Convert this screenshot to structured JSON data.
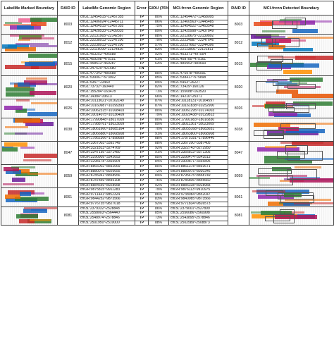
{
  "headers": {
    "left_image": "LabelMe Marked Boundary",
    "raid_left": "RAID ID",
    "genomic_region": "LabelMe Genomic Region",
    "error": "Error",
    "giou": "GIOU (76%)",
    "mci_region": "MCI-frcnn Genomic Region",
    "raid_right": "RAID ID",
    "right_image": "MCI-frcnn Detected Boundary"
  },
  "groups": [
    {
      "raid": "8003",
      "colors": [
        "#2e7d32",
        "#e64a19",
        "#8e24aa",
        "#1565c0",
        "#f06292"
      ],
      "rows": [
        {
          "region": "chr2L:12454515~12457355",
          "error": "TP",
          "giou": "80%",
          "mci": "chr2L:12454472~12458095"
        },
        {
          "region": "chr2L:12406024~12445711",
          "error": "TP",
          "giou": "86%",
          "mci": "chr2L:12400563~12445485"
        },
        {
          "region": "chr2L:12454515~12457355",
          "error": "TP",
          "giou": "75%",
          "mci": "chr2L:12454522~12463548"
        },
        {
          "region": "chr2L:12428533~12439335",
          "error": "TP",
          "giou": "89%",
          "mci": "chr2L:12425998~12437849"
        }
      ]
    },
    {
      "raid": "8012",
      "colors": [
        "#6a1b9a",
        "#ef6c00",
        "#0277bd",
        "#c2185b",
        "#558b2f"
      ],
      "rows": [
        {
          "region": "chr2L:22131905~22142567",
          "error": "TP",
          "giou": "88%",
          "mci": "chr2L:22128675~22139892"
        },
        {
          "region": "chr2L:22238913~22247200",
          "error": "TP",
          "giou": "79%",
          "mci": "chr2L:22234987~22247646"
        },
        {
          "region": "chr2L:22238913~22247200",
          "error": "TP",
          "giou": "57%",
          "mci": "chr2L:22237662~22244306"
        },
        {
          "region": "chr2L:22115099~22124826",
          "error": "TP",
          "giou": "83%",
          "mci": "chr2L:22113891~22121811"
        }
      ]
    },
    {
      "raid": "8015",
      "colors": [
        "#c62828",
        "#1565c0",
        "#2e7d32",
        "#8e24aa",
        "#ff8f00"
      ],
      "rows": [
        {
          "region": "chr2L:453253~496588",
          "error": "TP",
          "giou": "92%",
          "mci": "chr2L:453371~497554"
        },
        {
          "region": "chr2L:459208~475151",
          "error": "TP",
          "giou": "61%",
          "mci": "chr2L:458785~475161"
        },
        {
          "region": "chr2L:458513~469287",
          "error": "TP",
          "giou": "63%",
          "mci": "chr2L:480953~484693"
        },
        {
          "region": "chr2L:347529~421580",
          "error": "FN",
          "giou": "",
          "mci": ""
        },
        {
          "region": "chr2L:477343~485688",
          "error": "TP",
          "giou": "85%",
          "mci": "chr2L:476978~486591"
        }
      ]
    },
    {
      "raid": "8020",
      "colors": [
        "#e65100",
        "#2e7d32",
        "#1565c0",
        "#ad1457",
        "#6a1b9a"
      ],
      "rows": [
        {
          "region": "chr2L:539067~573902",
          "error": "TP",
          "giou": "85%",
          "mci": "chr2L:538417~575898"
        },
        {
          "region": "chr2L:5357~23469",
          "error": "TP",
          "giou": "84%",
          "mci": "chr2L:5463~26227"
        },
        {
          "region": "chr2L:73732~160449",
          "error": "TP",
          "giou": "82%",
          "mci": "chr2L:73429~160126"
        },
        {
          "region": "chr2L:155284~163478",
          "error": "TP",
          "giou": "71%",
          "mci": "chr2L:155088~163520"
        },
        {
          "region": "chr2L:14384~33613",
          "error": "TP",
          "giou": "66%",
          "mci": "chr2L:14216~25371"
        }
      ]
    },
    {
      "raid": "8026",
      "colors": [
        "#1565c0",
        "#c62828",
        "#2e7d32",
        "#8e24aa",
        "#ef6c00"
      ],
      "rows": [
        {
          "region": "chr2R:10113021~10162149",
          "error": "TP",
          "giou": "87%",
          "mci": "chr2R:10118131~10164597"
        },
        {
          "region": "chr2R:10160987~10299393",
          "error": "TP",
          "giou": "87%",
          "mci": "chr2R:10161838~10252900"
        },
        {
          "region": "chr2R:10062315~10168403",
          "error": "TP",
          "giou": "80%",
          "mci": "chr2R:10061295~10174003"
        },
        {
          "region": "chr2R:10014075~10136409",
          "error": "TP",
          "giou": "79%",
          "mci": "chr2R:10029438~10129813"
        }
      ]
    },
    {
      "raid": "8038",
      "colors": [
        "#ef6c00",
        "#6a1b9a",
        "#2e7d32",
        "#1565c0",
        "#c2185b"
      ],
      "rows": [
        {
          "region": "chr2R:17990848~18017009",
          "error": "TP",
          "giou": "80%",
          "mci": "chr2R:17991983~18016830"
        },
        {
          "region": "chr2R:17988761~18023009",
          "error": "TP",
          "giou": "89%",
          "mci": "chr2R:18011361~18023009"
        },
        {
          "region": "chr2R:18061660~18085164",
          "error": "TP",
          "giou": "70%",
          "mci": "chr2R:18055168~18083651"
        },
        {
          "region": "chr2R:18066880~18068908",
          "error": "TP",
          "giou": "91%",
          "mci": "chr2R:18063800~18068908"
        },
        {
          "region": "chr2R:17862366~17898689",
          "error": "TP",
          "giou": "88%",
          "mci": "chr2R:17875181~17896446"
        }
      ]
    },
    {
      "raid": "8047",
      "colors": [
        "#c62828",
        "#2e7d32",
        "#1565c0",
        "#8e24aa",
        "#ff8f00"
      ],
      "rows": [
        {
          "region": "chr2R:3367003~3392749",
          "error": "TP",
          "giou": "88%",
          "mci": "chr2R:3367200~3387405"
        },
        {
          "region": "chr2R:3321813~3274769",
          "error": "TP",
          "giou": "92%",
          "mci": "chr2R:3322743~3272950"
        },
        {
          "region": "chr2R:3347195~3371480",
          "error": "TP",
          "giou": "91%",
          "mci": "chr2R:3356813~3371305"
        },
        {
          "region": "chr2R:3290909~3342693",
          "error": "TP",
          "giou": "85%",
          "mci": "chr2R:3290474~3343513"
        },
        {
          "region": "chr2R:3298178~3365904",
          "error": "TP",
          "giou": "84%",
          "mci": "chr2R:3300871~3365895"
        }
      ]
    },
    {
      "raid": "8059",
      "colors": [
        "#ad1457",
        "#2e7d32",
        "#ef6c00",
        "#1565c0",
        "#6a1b9a"
      ],
      "rows": [
        {
          "region": "chr2R:8865002~8892069",
          "error": "TP",
          "giou": "80%",
          "mci": "chr2R:8861378~8893671"
        },
        {
          "region": "chr2R:8880075~8926655",
          "error": "TP",
          "giou": "72%",
          "mci": "chr2R:8880075~8930346"
        },
        {
          "region": "chr2R:8785941~8858956",
          "error": "TP",
          "giou": "84%",
          "mci": "chr2R:8795475~8858749"
        },
        {
          "region": "chr2R:8787859~8845108",
          "error": "TP",
          "giou": "76%",
          "mci": "chr2R:8786806~8845660"
        },
        {
          "region": "chr2R:8884659~8928958",
          "error": "TP",
          "giou": "92%",
          "mci": "chr2R:8885338~8928958"
        }
      ]
    },
    {
      "raid": "8061",
      "colors": [
        "#ef6c00",
        "#1565c0",
        "#c62828",
        "#2e7d32",
        "#8e24aa"
      ],
      "rows": [
        {
          "region": "chr2R:9875815~9911283",
          "error": "TP",
          "giou": "79%",
          "mci": "chr2R:9876113~9910975"
        },
        {
          "region": "chr2R:9711441~9852324",
          "error": "TP",
          "giou": "86%",
          "mci": "chr2R:9738984~9852047"
        },
        {
          "region": "chr2R:9844252~9873566",
          "error": "TP",
          "giou": "83%",
          "mci": "chr2R:9840985~9873566"
        },
        {
          "region": "chr2R:9776735~9827018",
          "error": "TP",
          "giou": "92%",
          "mci": "chr2R:9771834~9826573"
        }
      ]
    },
    {
      "raid": "8081",
      "colors": [
        "#2e7d32",
        "#c62828",
        "#1565c0",
        "#ff8f00",
        "#ad1457"
      ],
      "rows": [
        {
          "region": "chr3L:2379332~2528848",
          "error": "TP",
          "giou": "86%",
          "mci": "chr3L:2379001~2527899"
        },
        {
          "region": "chr3L:2558003~2564440",
          "error": "TP",
          "giou": "85%",
          "mci": "chr3L:2550086~2560998"
        },
        {
          "region": "chr3L:2548974~2578846",
          "error": "TP",
          "giou": "73%",
          "mci": "chr3L:2543895~2578846"
        },
        {
          "region": "chr3L:2501950~2510000",
          "error": "TP",
          "giou": "88%",
          "mci": "chr3L:2502589~2508873"
        }
      ]
    }
  ]
}
